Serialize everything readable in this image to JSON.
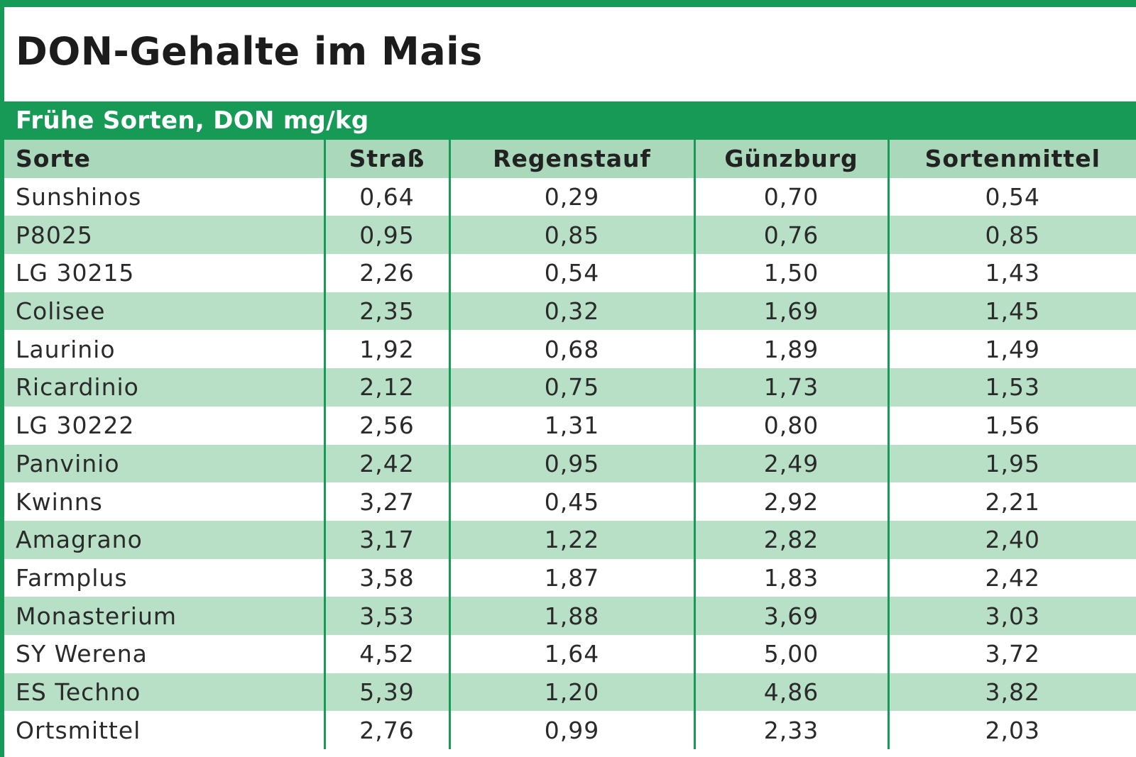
{
  "title": "DON-Gehalte im Mais",
  "subtitle": "Frühe Sorten, DON mg/kg",
  "colors": {
    "accent_green": "#169a56",
    "header_row": "#a9d8bb",
    "stripe_row": "#b8e0c7"
  },
  "table": {
    "headers": [
      "Sorte",
      "Straß",
      "Regenstauf",
      "Günzburg",
      "Sortenmittel"
    ],
    "rows": [
      [
        "Sunshinos",
        "0,64",
        "0,29",
        "0,70",
        "0,54"
      ],
      [
        "P8025",
        "0,95",
        "0,85",
        "0,76",
        "0,85"
      ],
      [
        "LG 30215",
        "2,26",
        "0,54",
        "1,50",
        "1,43"
      ],
      [
        "Colisee",
        "2,35",
        "0,32",
        "1,69",
        "1,45"
      ],
      [
        "Laurinio",
        "1,92",
        "0,68",
        "1,89",
        "1,49"
      ],
      [
        "Ricardinio",
        "2,12",
        "0,75",
        "1,73",
        "1,53"
      ],
      [
        "LG 30222",
        "2,56",
        "1,31",
        "0,80",
        "1,56"
      ],
      [
        "Panvinio",
        "2,42",
        "0,95",
        "2,49",
        "1,95"
      ],
      [
        "Kwinns",
        "3,27",
        "0,45",
        "2,92",
        "2,21"
      ],
      [
        "Amagrano",
        "3,17",
        "1,22",
        "2,82",
        "2,40"
      ],
      [
        "Farmplus",
        "3,58",
        "1,87",
        "1,83",
        "2,42"
      ],
      [
        "Monasterium",
        "3,53",
        "1,88",
        "3,69",
        "3,03"
      ],
      [
        "SY Werena",
        "4,52",
        "1,64",
        "5,00",
        "3,72"
      ],
      [
        "ES Techno",
        "5,39",
        "1,20",
        "4,86",
        "3,82"
      ],
      [
        "Ortsmittel",
        "2,76",
        "0,99",
        "2,33",
        "2,03"
      ]
    ]
  }
}
